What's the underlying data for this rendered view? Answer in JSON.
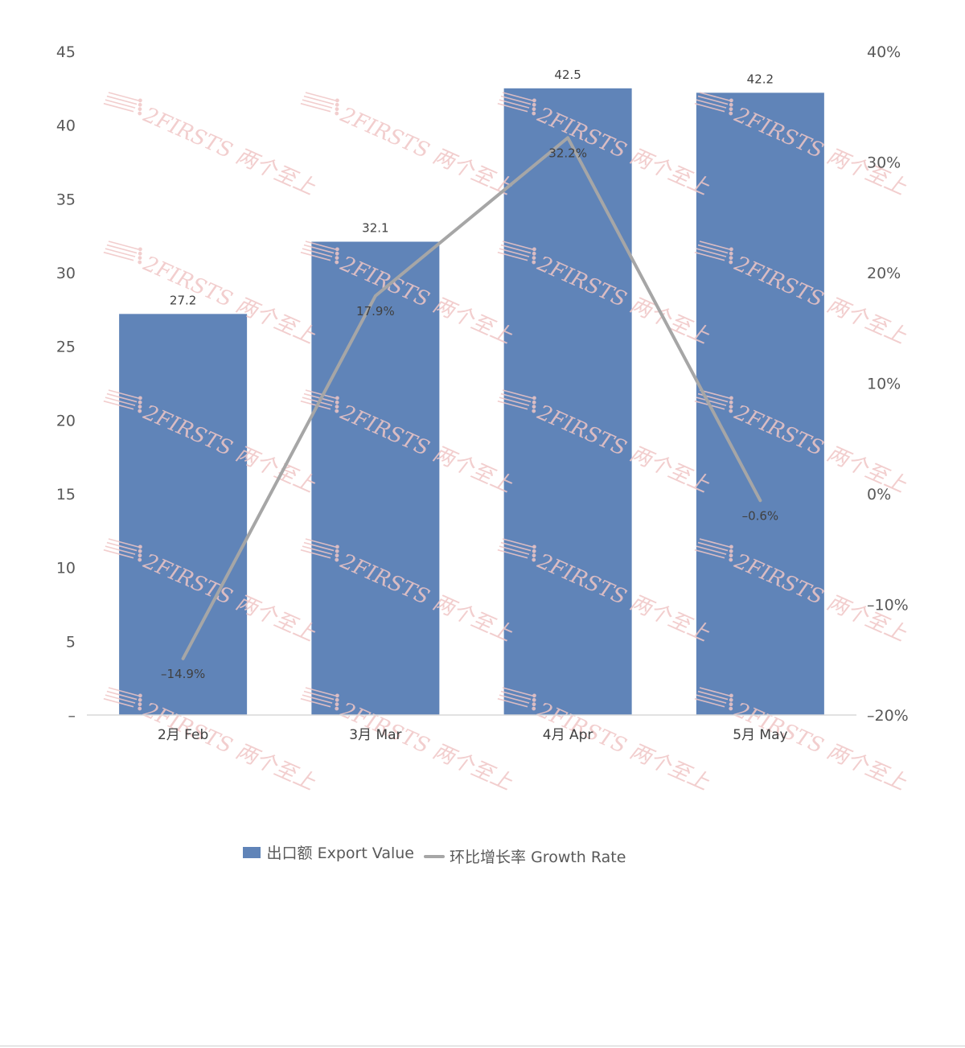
{
  "chart_data": {
    "type": "bar",
    "categories": [
      "2月 Feb",
      "3月 Mar",
      "4月 Apr",
      "5月 May"
    ],
    "series": [
      {
        "name": "出口额 Export Value",
        "type": "bar",
        "axis": "left",
        "values": [
          27.2,
          32.1,
          42.5,
          42.2
        ],
        "labels": [
          "27.2",
          "32.1",
          "42.5",
          "42.2"
        ],
        "color": "#6084b8"
      },
      {
        "name": "环比增长率 Growth Rate",
        "type": "line",
        "axis": "right",
        "values": [
          -14.9,
          17.9,
          32.2,
          -0.6
        ],
        "labels": [
          "–14.9%",
          "17.9%",
          "32.2%",
          "–0.6%"
        ],
        "color": "#a6a6a6"
      }
    ],
    "left_axis": {
      "ylim": [
        0,
        45
      ],
      "ticks": [
        0,
        5,
        10,
        15,
        20,
        25,
        30,
        35,
        40,
        45
      ],
      "tick_labels": [
        "–",
        "5",
        "10",
        "15",
        "20",
        "25",
        "30",
        "35",
        "40",
        "45"
      ]
    },
    "right_axis": {
      "ylim": [
        -20,
        40
      ],
      "ticks": [
        -20,
        -10,
        0,
        10,
        20,
        30,
        40
      ],
      "tick_labels": [
        "–20%",
        "–10%",
        "0%",
        "10%",
        "20%",
        "30%",
        "40%"
      ]
    },
    "grid": false,
    "legend_position": "bottom"
  },
  "watermark": {
    "text": "2FIRSTS 两个至上",
    "color": "#f0c6c6"
  },
  "legend": {
    "bar_label": "出口额 Export Value",
    "line_label": "环比增长率 Growth Rate"
  }
}
